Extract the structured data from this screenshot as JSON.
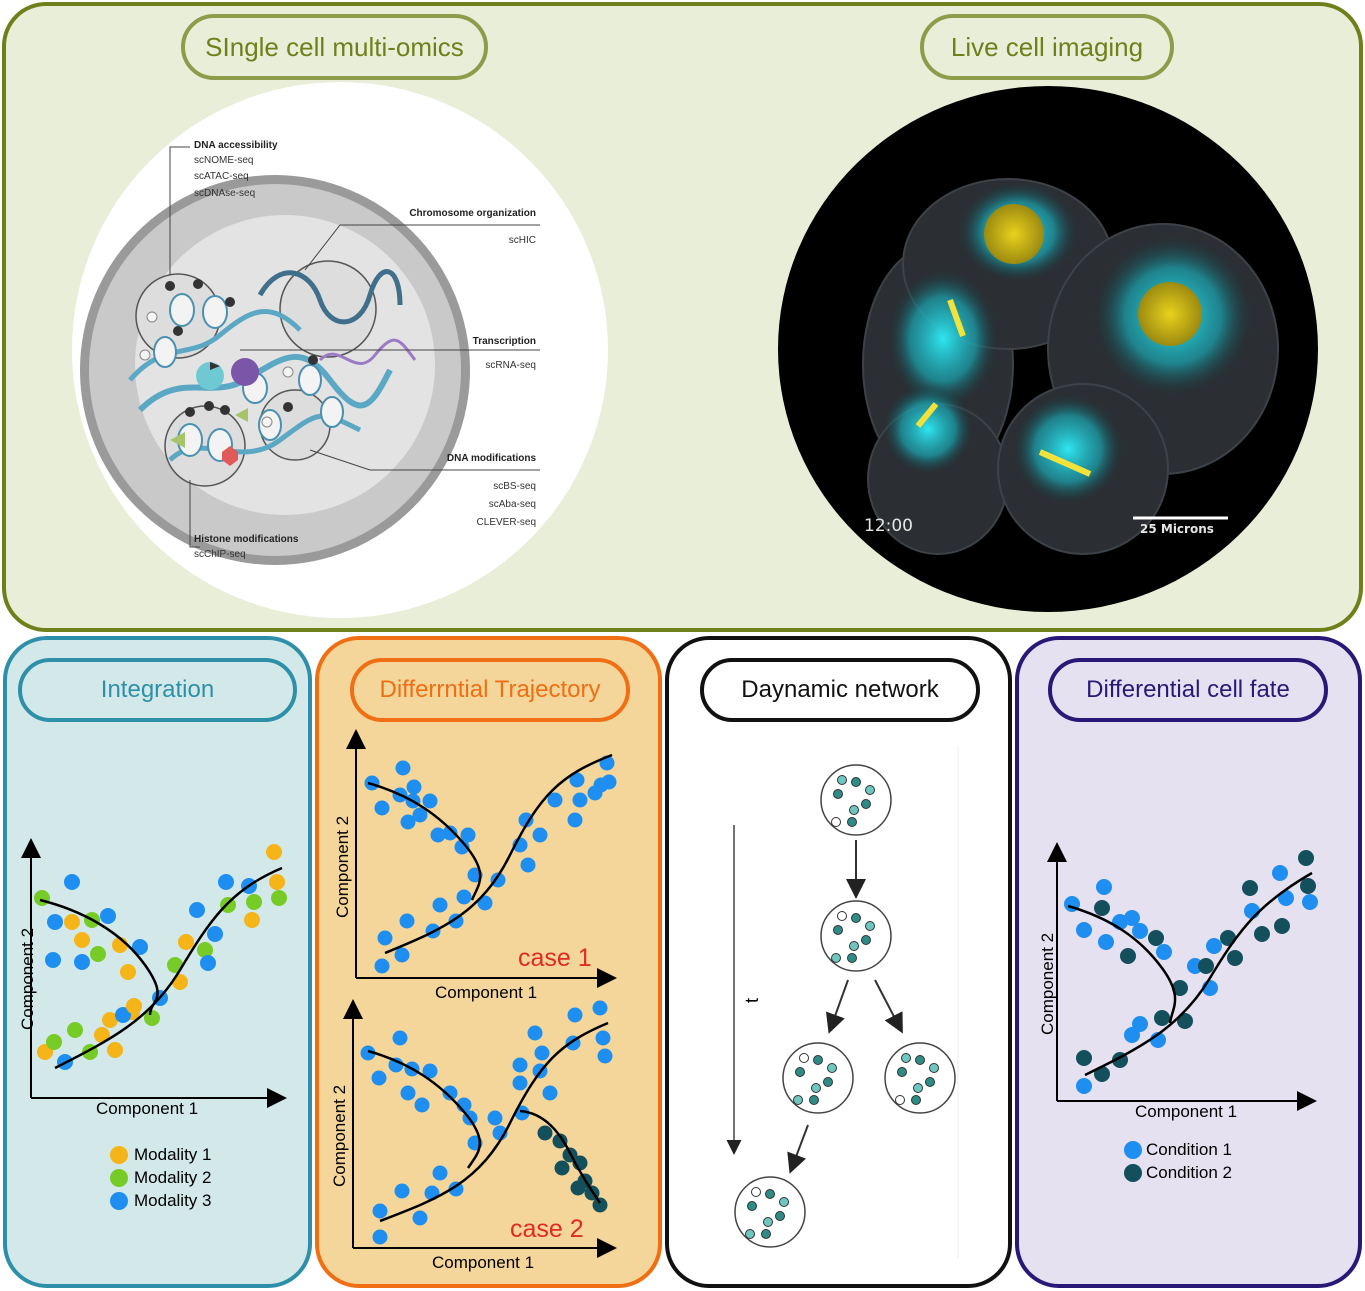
{
  "top": {
    "left_title": "SIngle cell multi-omics",
    "right_title": "Live cell imaging",
    "cell_labels": {
      "dna_accessibility": "DNA accessibility",
      "dna_accessibility_methods": [
        "scNOME-seq",
        "scATAC-seq",
        "scDNAse-seq"
      ],
      "chromosome_org": "Chromosome organization",
      "chromosome_org_methods": [
        "scHIC"
      ],
      "transcription": "Transcription",
      "transcription_methods": [
        "scRNA-seq"
      ],
      "dna_modifications": "DNA modifications",
      "dna_modifications_methods": [
        "scBS-seq",
        "scAba-seq",
        "CLEVER-seq"
      ],
      "histone": "Histone modifications",
      "histone_methods": [
        "scChIP-seq"
      ]
    },
    "microscopy": {
      "timestamp": "12:00",
      "scale": "25 Microns"
    }
  },
  "panels": {
    "integration": {
      "title": "Integration",
      "xlabel": "Component 1",
      "ylabel": "Component 2",
      "legend": [
        "Modality 1",
        "Modality 2",
        "Modality 3"
      ]
    },
    "trajectory": {
      "title": "Differrntial Trajectory",
      "xlabel": "Component 1",
      "ylabel": "Component 2",
      "case1": "case 1",
      "case2": "case 2"
    },
    "network": {
      "title": "Daynamic network",
      "time_label": "t"
    },
    "cellfate": {
      "title": "Differential cell fate",
      "xlabel": "Component 1",
      "ylabel": "Component 2",
      "legend": [
        "Condition 1",
        "Condition 2"
      ]
    }
  },
  "colors": {
    "modality1": "#F5B417",
    "modality2": "#77CB26",
    "modality3": "#1E8FF0",
    "condition2": "#144F5C",
    "top_bg": "#E9EED8",
    "top_border": "#6F7F1A",
    "integration_bg": "#D3E9E9",
    "integration_border": "#2E90A8",
    "trajectory_bg": "#F5D69A",
    "trajectory_border": "#F06E14",
    "fate_bg": "#E6E1F1",
    "fate_border": "#2A1877",
    "case_text": "#E02A23"
  }
}
